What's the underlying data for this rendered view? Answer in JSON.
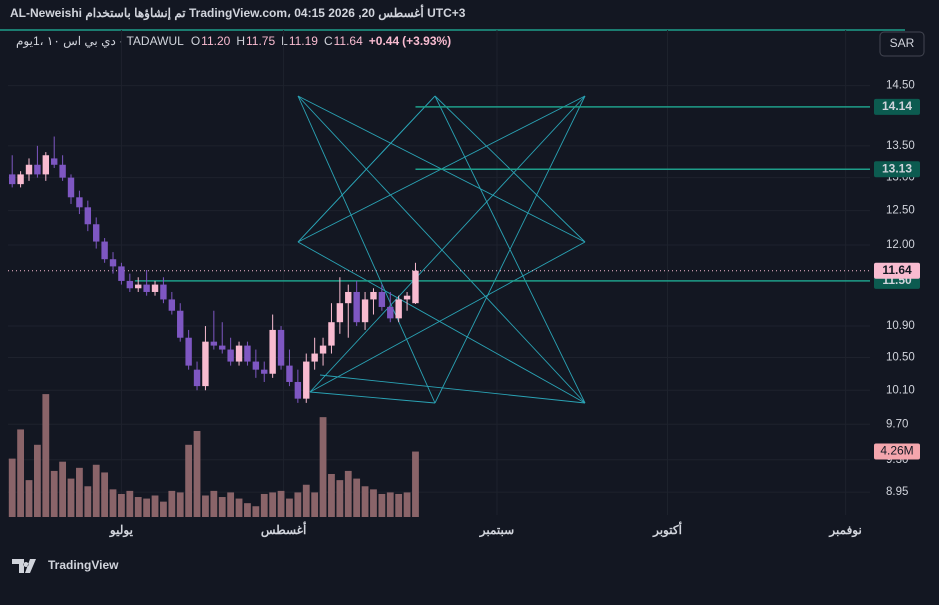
{
  "header": {
    "title": "AL-Neweishi تم إنشاؤها باستخدام TradingView.com، 04:15 2026 ,20 أغسطس UTC+3",
    "logo": "TradingView",
    "currency": "SAR"
  },
  "chart_data": {
    "type": "candlestick",
    "log_scale": true,
    "symbol": "دي بي اس ١٠ ،1يوم · TADAWUL",
    "ohlc": [
      {
        "key": "O",
        "value": 11.2,
        "label": "11.20"
      },
      {
        "key": "H",
        "value": 11.75,
        "label": "11.75"
      },
      {
        "key": "L",
        "value": 11.19,
        "label": "11.19"
      },
      {
        "key": "C",
        "value": 11.64,
        "label": "11.64"
      }
    ],
    "change": {
      "value": 0.44,
      "label": "+0.44"
    },
    "change_pct": {
      "value": 3.93,
      "label": "(+3.93%)"
    },
    "up_color": "#f8bbd0",
    "down_color": "#7e57c2",
    "volume_color": "#8a6469",
    "line_color": "#1e9e8a",
    "open": [
      13.05,
      12.9,
      13.05,
      13.2,
      13.05,
      13.3,
      13.2,
      13.0,
      12.7,
      12.55,
      12.3,
      12.05,
      11.8,
      11.7,
      11.5,
      11.4,
      11.45,
      11.35,
      11.45,
      11.25,
      11.1,
      10.75,
      10.35,
      10.15,
      10.7,
      10.65,
      10.6,
      10.45,
      10.65,
      10.45,
      10.35,
      10.3,
      10.85,
      10.4,
      10.2,
      10.0,
      10.45,
      10.55,
      10.65,
      10.95,
      11.2,
      11.35,
      10.95,
      11.25,
      11.35,
      11.15,
      11.0,
      11.25,
      11.2
    ],
    "high": [
      13.35,
      13.1,
      13.3,
      13.5,
      13.4,
      13.65,
      13.35,
      13.05,
      12.8,
      12.65,
      12.4,
      12.1,
      11.9,
      11.75,
      11.6,
      11.55,
      11.65,
      11.5,
      11.55,
      11.35,
      11.2,
      10.85,
      10.45,
      10.9,
      11.1,
      10.95,
      10.75,
      10.7,
      10.7,
      10.6,
      10.45,
      11.05,
      10.9,
      10.6,
      10.35,
      10.55,
      10.75,
      10.75,
      11.2,
      11.55,
      11.45,
      11.5,
      11.35,
      11.4,
      11.45,
      11.35,
      11.3,
      11.35,
      11.75
    ],
    "low": [
      12.85,
      12.85,
      12.95,
      13.0,
      12.95,
      13.15,
      12.95,
      12.6,
      12.45,
      12.2,
      11.95,
      11.75,
      11.6,
      11.45,
      11.35,
      11.35,
      11.3,
      11.3,
      11.2,
      11.05,
      10.7,
      10.35,
      10.1,
      10.1,
      10.6,
      10.55,
      10.4,
      10.4,
      10.4,
      10.25,
      10.2,
      10.25,
      10.35,
      10.15,
      9.95,
      9.95,
      10.35,
      10.4,
      10.55,
      10.8,
      10.75,
      10.9,
      10.85,
      11.05,
      11.1,
      10.95,
      10.95,
      11.1,
      11.19
    ],
    "close": [
      12.9,
      13.05,
      13.2,
      13.05,
      13.35,
      13.2,
      13.0,
      12.7,
      12.55,
      12.3,
      12.05,
      11.8,
      11.7,
      11.5,
      11.4,
      11.45,
      11.35,
      11.45,
      11.25,
      11.1,
      10.75,
      10.4,
      10.15,
      10.7,
      10.65,
      10.6,
      10.45,
      10.65,
      10.45,
      10.35,
      10.3,
      10.85,
      10.4,
      10.2,
      10.0,
      10.45,
      10.55,
      10.65,
      10.95,
      11.2,
      11.35,
      10.95,
      11.25,
      11.35,
      11.15,
      11.0,
      11.25,
      11.3,
      11.64
    ],
    "volume": [
      3.8,
      5.7,
      2.4,
      4.7,
      8.0,
      3.0,
      3.6,
      2.5,
      3.2,
      2.0,
      3.4,
      2.9,
      1.8,
      1.5,
      1.7,
      1.3,
      1.2,
      1.4,
      1.0,
      1.7,
      1.6,
      4.7,
      5.6,
      1.4,
      1.7,
      1.3,
      1.6,
      1.2,
      0.9,
      0.7,
      1.5,
      1.6,
      1.7,
      1.2,
      1.6,
      2.1,
      1.6,
      6.5,
      2.8,
      2.4,
      3.0,
      2.5,
      2.0,
      1.8,
      1.5,
      1.6,
      1.5,
      1.6,
      4.26
    ],
    "volume_last_label": "4.26M",
    "volume_ylim": [
      0,
      31.7
    ],
    "xlim": [
      -0.5,
      102.1
    ],
    "xticks": [
      {
        "value": 13,
        "label": "يوليو"
      },
      {
        "value": 32.3,
        "label": "أغسطس"
      },
      {
        "value": 57.7,
        "label": "سبتمبر"
      },
      {
        "value": 78,
        "label": "أكتوبر"
      },
      {
        "value": 99.2,
        "label": "نوفمبر"
      }
    ],
    "ylim": [
      8.71,
      15.49
    ],
    "yticks": [
      {
        "value": 14.5,
        "label": "14.50"
      },
      {
        "value": 13.5,
        "label": "13.50"
      },
      {
        "value": 13,
        "label": "13.00"
      },
      {
        "value": 12.5,
        "label": "12.50"
      },
      {
        "value": 12,
        "label": "12.00"
      },
      {
        "value": 10.9,
        "label": "10.90"
      },
      {
        "value": 10.5,
        "label": "10.50"
      },
      {
        "value": 10.1,
        "label": "10.10"
      },
      {
        "value": 9.7,
        "label": "9.70"
      },
      {
        "value": 9.3,
        "label": "9.30"
      },
      8.95
    ],
    "price_lines": [
      {
        "value": 14.14,
        "x_start": 48
      },
      {
        "value": 13.13,
        "x_start": 48
      },
      {
        "value": 11.5,
        "label": "11.50",
        "x_start": 14.6
      }
    ],
    "grid": true
  }
}
